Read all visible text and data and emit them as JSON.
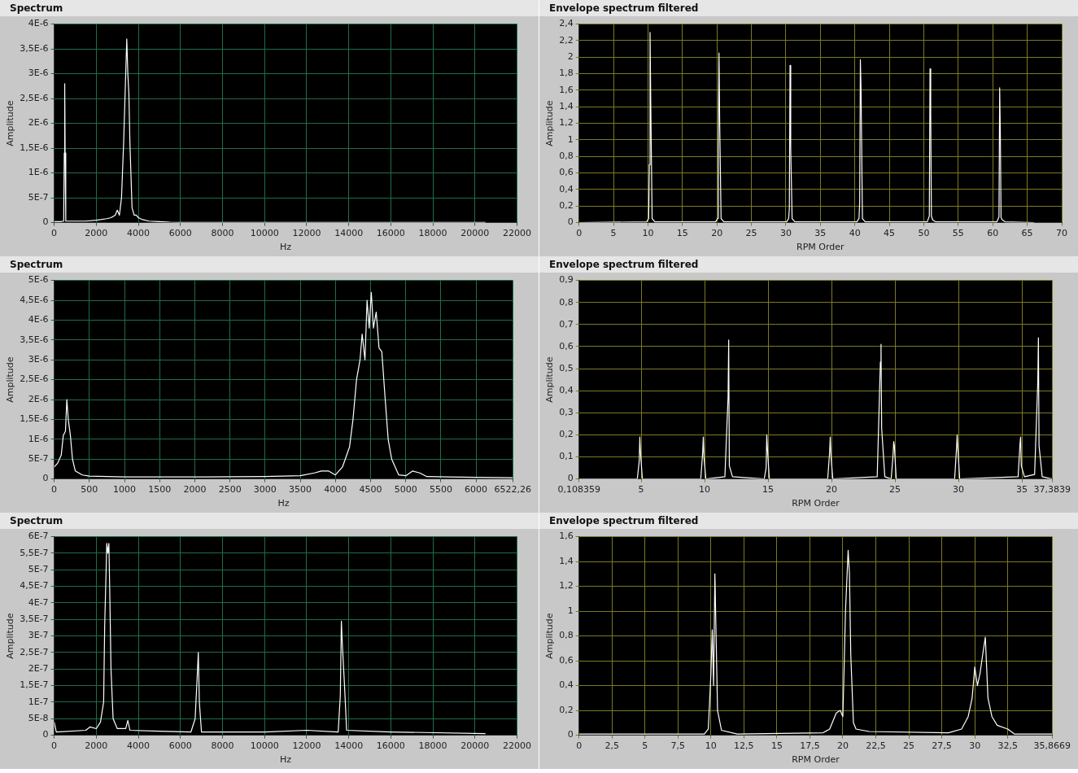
{
  "chart_data": [
    {
      "type": "line",
      "title": "Spectrum",
      "xlabel": "Hz",
      "ylabel": "Amplitude",
      "grid": true,
      "xlim": [
        0,
        22000
      ],
      "xticks": [
        0,
        2000,
        4000,
        6000,
        8000,
        10000,
        12000,
        14000,
        16000,
        18000,
        20000,
        22000
      ],
      "ylim": [
        0,
        4e-06
      ],
      "yticks": [
        0,
        {
          "value": 5e-07,
          "label": "5E-7"
        },
        {
          "value": 1e-06,
          "label": "1E-6"
        },
        {
          "value": 1.5e-06,
          "label": "1,5E-6"
        },
        {
          "value": 2e-06,
          "label": "2E-6"
        },
        {
          "value": 2.5e-06,
          "label": "2,5E-6"
        },
        {
          "value": 3e-06,
          "label": "3E-6"
        },
        {
          "value": 3.5e-06,
          "label": "3,5E-6"
        },
        {
          "value": 4e-06,
          "label": "4E-6"
        }
      ],
      "series": [
        {
          "color": "#ffffff",
          "x": [
            0,
            300,
            450,
            480,
            500,
            520,
            550,
            1000,
            1500,
            2000,
            2500,
            2700,
            2900,
            3000,
            3100,
            3200,
            3300,
            3400,
            3450,
            3500,
            3550,
            3600,
            3700,
            3800,
            3900,
            4000,
            4200,
            4500,
            5000,
            5500,
            6000,
            10000,
            15000,
            20500
          ],
          "values": [
            2e-08,
            2e-08,
            3e-08,
            1.4e-06,
            2.8e-06,
            1.4e-06,
            3e-08,
            3e-08,
            3e-08,
            5e-08,
            8e-08,
            1e-07,
            1.5e-07,
            2.5e-07,
            1.5e-07,
            5e-07,
            1.6e-06,
            3e-06,
            3.7e-06,
            3e-06,
            2.6e-06,
            1.6e-06,
            3e-07,
            1.5e-07,
            1.5e-07,
            1e-07,
            6e-08,
            3e-08,
            2e-08,
            1e-08,
            5e-09,
            5e-09,
            5e-09,
            5e-09
          ]
        }
      ]
    },
    {
      "type": "line",
      "title": "Envelope spectrum filtered",
      "xlabel": "RPM Order",
      "ylabel": "Amplitude",
      "grid": true,
      "xlim": [
        0,
        70
      ],
      "xticks": [
        0,
        5,
        10,
        15,
        20,
        25,
        30,
        35,
        40,
        45,
        50,
        55,
        60,
        65,
        70
      ],
      "ylim": [
        0,
        2.4
      ],
      "yticks": [
        0,
        {
          "value": 0.2,
          "label": "0,2"
        },
        {
          "value": 0.4,
          "label": "0,4"
        },
        {
          "value": 0.6,
          "label": "0,6"
        },
        {
          "value": 0.8,
          "label": "0,8"
        },
        1,
        {
          "value": 1.2,
          "label": "1,2"
        },
        {
          "value": 1.4,
          "label": "1,4"
        },
        {
          "value": 1.6,
          "label": "1,6"
        },
        {
          "value": 1.8,
          "label": "1,8"
        },
        2,
        {
          "value": 2.2,
          "label": "2,2"
        },
        {
          "value": 2.4,
          "label": "2,4"
        }
      ],
      "series": [
        {
          "color": "#ffffff",
          "x": [
            0,
            9.8,
            10.1,
            10.2,
            10.3,
            10.4,
            10.6,
            11,
            19.8,
            20.1,
            20.2,
            20.3,
            20.4,
            20.6,
            21,
            30.1,
            30.4,
            30.5,
            30.6,
            30.7,
            30.9,
            31.3,
            40.3,
            40.6,
            40.7,
            40.8,
            40.9,
            41.1,
            41.5,
            50.5,
            50.8,
            50.9,
            51,
            51.1,
            51.3,
            51.7,
            60.6,
            60.9,
            61,
            61.1,
            61.2,
            61.4,
            61.8,
            66
          ],
          "values": [
            0,
            0.01,
            0.05,
            0.7,
            2.3,
            1.47,
            0.05,
            0.01,
            0.01,
            0.05,
            0.9,
            2.05,
            1.2,
            0.05,
            0.01,
            0.01,
            0.05,
            0.17,
            1.9,
            0.9,
            0.05,
            0.01,
            0.01,
            0.05,
            0.25,
            1.97,
            1.6,
            0.05,
            0.01,
            0.01,
            0.08,
            1.86,
            1.34,
            0.08,
            0.03,
            0.01,
            0.01,
            0.07,
            1.63,
            1.06,
            0.06,
            0.03,
            0.01,
            0
          ]
        }
      ]
    },
    {
      "type": "line",
      "title": "Spectrum",
      "xlabel": "Hz",
      "ylabel": "Amplitude",
      "grid": true,
      "xlim": [
        0,
        6522.26
      ],
      "xticks": [
        0,
        500,
        1000,
        1500,
        2000,
        2500,
        3000,
        3500,
        4000,
        4500,
        5000,
        5500,
        6000,
        {
          "value": 6522.26,
          "label": "6522,26"
        }
      ],
      "ylim": [
        0,
        5e-06
      ],
      "yticks": [
        0,
        {
          "value": 5e-07,
          "label": "5E-7"
        },
        {
          "value": 1e-06,
          "label": "1E-6"
        },
        {
          "value": 1.5e-06,
          "label": "1,5E-6"
        },
        {
          "value": 2e-06,
          "label": "2E-6"
        },
        {
          "value": 2.5e-06,
          "label": "2,5E-6"
        },
        {
          "value": 3e-06,
          "label": "3E-6"
        },
        {
          "value": 3.5e-06,
          "label": "3,5E-6"
        },
        {
          "value": 4e-06,
          "label": "4E-6"
        },
        {
          "value": 4.5e-06,
          "label": "4,5E-6"
        },
        {
          "value": 5e-06,
          "label": "5E-6"
        }
      ],
      "series": [
        {
          "color": "#ffffff",
          "x": [
            0,
            50,
            100,
            130,
            160,
            180,
            200,
            230,
            260,
            300,
            400,
            500,
            1000,
            2000,
            3000,
            3500,
            3700,
            3800,
            3900,
            4000,
            4100,
            4200,
            4250,
            4300,
            4350,
            4380,
            4420,
            4450,
            4480,
            4510,
            4540,
            4580,
            4620,
            4660,
            4700,
            4750,
            4800,
            4900,
            5000,
            5100,
            5200,
            5300,
            5600,
            6000,
            6522.26
          ],
          "values": [
            3e-07,
            4e-07,
            6e-07,
            1.1e-06,
            1.2e-06,
            2e-06,
            1.5e-06,
            1.1e-06,
            5e-07,
            2e-07,
            1e-07,
            7e-08,
            5e-08,
            5e-08,
            6e-08,
            8e-08,
            1.5e-07,
            2e-07,
            2e-07,
            1e-07,
            3e-07,
            8e-07,
            1.5e-06,
            2.5e-06,
            3e-06,
            3.65e-06,
            3e-06,
            4.5e-06,
            3.8e-06,
            4.7e-06,
            3.8e-06,
            4.2e-06,
            3.3e-06,
            3.2e-06,
            2.2e-06,
            1e-06,
            5e-07,
            1e-07,
            8e-08,
            2e-07,
            1.5e-07,
            6e-08,
            5e-08,
            4e-08,
            3e-08
          ]
        }
      ]
    },
    {
      "type": "line",
      "title": "Envelope spectrum filtered",
      "xlabel": "RPM Order",
      "ylabel": "Amplitude",
      "grid": true,
      "xlim": [
        0.108359,
        37.3839
      ],
      "xticks": [
        {
          "value": 0.108359,
          "label": "0,108359"
        },
        5,
        10,
        15,
        20,
        25,
        30,
        35,
        {
          "value": 37.3839,
          "label": "37,3839"
        }
      ],
      "ylim": [
        0,
        0.9
      ],
      "yticks": [
        0,
        {
          "value": 0.1,
          "label": "0,1"
        },
        {
          "value": 0.2,
          "label": "0,2"
        },
        {
          "value": 0.3,
          "label": "0,3"
        },
        {
          "value": 0.4,
          "label": "0,4"
        },
        {
          "value": 0.5,
          "label": "0,5"
        },
        {
          "value": 0.6,
          "label": "0,6"
        },
        {
          "value": 0.7,
          "label": "0,7"
        },
        {
          "value": 0.8,
          "label": "0,8"
        },
        {
          "value": 0.9,
          "label": "0,9"
        }
      ],
      "series": [
        {
          "color": "#ffffff",
          "x": [
            0.108359,
            4.7,
            4.85,
            4.9,
            4.95,
            5.1,
            9.7,
            9.85,
            9.9,
            9.95,
            10.1,
            11.6,
            11.85,
            11.9,
            11.95,
            12.2,
            14.7,
            14.85,
            14.9,
            14.95,
            15.1,
            19.7,
            19.85,
            19.9,
            19.95,
            20.1,
            23.6,
            23.85,
            23.9,
            23.95,
            24.2,
            24.7,
            24.85,
            24.9,
            24.95,
            25.1,
            29.7,
            29.85,
            29.9,
            29.95,
            30.1,
            34.7,
            34.85,
            34.9,
            34.95,
            35.2,
            36.0,
            36.25,
            36.3,
            36.35,
            36.6,
            37.3839
          ],
          "values": [
            0,
            0,
            0.08,
            0.19,
            0.12,
            0,
            0,
            0.12,
            0.19,
            0.1,
            0,
            0.01,
            0.37,
            0.63,
            0.06,
            0.01,
            0,
            0.05,
            0.2,
            0.14,
            0,
            0,
            0.12,
            0.19,
            0.11,
            0,
            0.01,
            0.53,
            0.61,
            0.23,
            0.01,
            0,
            0.11,
            0.17,
            0.15,
            0,
            0,
            0.14,
            0.2,
            0.14,
            0,
            0.01,
            0.16,
            0.19,
            0.06,
            0.01,
            0.02,
            0.44,
            0.64,
            0.15,
            0.01,
            0
          ]
        }
      ]
    },
    {
      "type": "line",
      "title": "Spectrum",
      "xlabel": "Hz",
      "ylabel": "Amplitude",
      "grid": true,
      "xlim": [
        0,
        22000
      ],
      "xticks": [
        0,
        2000,
        4000,
        6000,
        8000,
        10000,
        12000,
        14000,
        16000,
        18000,
        20000,
        22000
      ],
      "ylim": [
        0,
        6e-07
      ],
      "yticks": [
        0,
        {
          "value": 5e-08,
          "label": "5E-8"
        },
        {
          "value": 1e-07,
          "label": "1E-7"
        },
        {
          "value": 1.5e-07,
          "label": "1,5E-7"
        },
        {
          "value": 2e-07,
          "label": "2E-7"
        },
        {
          "value": 2.5e-07,
          "label": "2,5E-7"
        },
        {
          "value": 3e-07,
          "label": "3E-7"
        },
        {
          "value": 3.5e-07,
          "label": "3,5E-7"
        },
        {
          "value": 4e-07,
          "label": "4E-7"
        },
        {
          "value": 4.5e-07,
          "label": "4,5E-7"
        },
        {
          "value": 5e-07,
          "label": "5E-7"
        },
        {
          "value": 5.5e-07,
          "label": "5,5E-7"
        },
        {
          "value": 6e-07,
          "label": "6E-7"
        }
      ],
      "series": [
        {
          "color": "#ffffff",
          "x": [
            0,
            100,
            1500,
            1700,
            2000,
            2200,
            2350,
            2400,
            2500,
            2550,
            2600,
            2650,
            2700,
            2800,
            3000,
            3400,
            3500,
            3600,
            5000,
            6500,
            6700,
            6800,
            6850,
            6900,
            7000,
            10000,
            12000,
            13500,
            13600,
            13650,
            13700,
            13800,
            13900,
            16000,
            20500
          ],
          "values": [
            4e-08,
            1e-08,
            1.5e-08,
            2.5e-08,
            2e-08,
            4e-08,
            1e-07,
            3.3e-07,
            5.8e-07,
            5.5e-07,
            5.8e-07,
            4e-07,
            2e-07,
            5e-08,
            2e-08,
            2e-08,
            4.5e-08,
            1.5e-08,
            1.2e-08,
            1e-08,
            5e-08,
            1.8e-07,
            2.5e-07,
            1e-07,
            1e-08,
            1e-08,
            1.5e-08,
            1e-08,
            1.2e-07,
            3.45e-07,
            2.7e-07,
            1.5e-07,
            1.5e-08,
            1e-08,
            5e-09
          ]
        }
      ]
    },
    {
      "type": "line",
      "title": "Envelope spectrum filtered",
      "xlabel": "RPM Order",
      "ylabel": "Amplitude",
      "grid": true,
      "xlim": [
        0,
        35.8669
      ],
      "xticks": [
        0,
        {
          "value": 2.5,
          "label": "2,5"
        },
        5,
        {
          "value": 7.5,
          "label": "7,5"
        },
        10,
        {
          "value": 12.5,
          "label": "12,5"
        },
        15,
        {
          "value": 17.5,
          "label": "17,5"
        },
        20,
        {
          "value": 22.5,
          "label": "22,5"
        },
        25,
        {
          "value": 27.5,
          "label": "27,5"
        },
        30,
        {
          "value": 32.5,
          "label": "32,5"
        },
        {
          "value": 35.8669,
          "label": "35,8669"
        }
      ],
      "ylim": [
        0,
        1.6
      ],
      "yticks": [
        0,
        {
          "value": 0.2,
          "label": "0,2"
        },
        {
          "value": 0.4,
          "label": "0,4"
        },
        {
          "value": 0.6,
          "label": "0,6"
        },
        {
          "value": 0.8,
          "label": "0,8"
        },
        1,
        {
          "value": 1.2,
          "label": "1,2"
        },
        {
          "value": 1.4,
          "label": "1,4"
        },
        {
          "value": 1.6,
          "label": "1,6"
        }
      ],
      "series": [
        {
          "color": "#ffffff",
          "x": [
            0,
            9.5,
            9.8,
            10,
            10.1,
            10.2,
            10.3,
            10.5,
            10.8,
            12,
            18.5,
            19,
            19.5,
            19.8,
            20,
            20.2,
            20.4,
            20.5,
            20.6,
            20.8,
            21,
            22,
            28,
            29,
            29.5,
            29.8,
            30,
            30.2,
            30.4,
            30.6,
            30.8,
            31,
            31.3,
            31.7,
            32.5,
            33,
            35.8669
          ],
          "values": [
            0.01,
            0.01,
            0.05,
            0.5,
            0.85,
            0.4,
            1.3,
            0.2,
            0.04,
            0.01,
            0.02,
            0.05,
            0.18,
            0.2,
            0.15,
            1,
            1.49,
            1.3,
            0.65,
            0.1,
            0.05,
            0.03,
            0.02,
            0.05,
            0.15,
            0.3,
            0.55,
            0.4,
            0.5,
            0.65,
            0.79,
            0.3,
            0.15,
            0.08,
            0.05,
            0.01,
            0.01
          ]
        }
      ]
    }
  ]
}
